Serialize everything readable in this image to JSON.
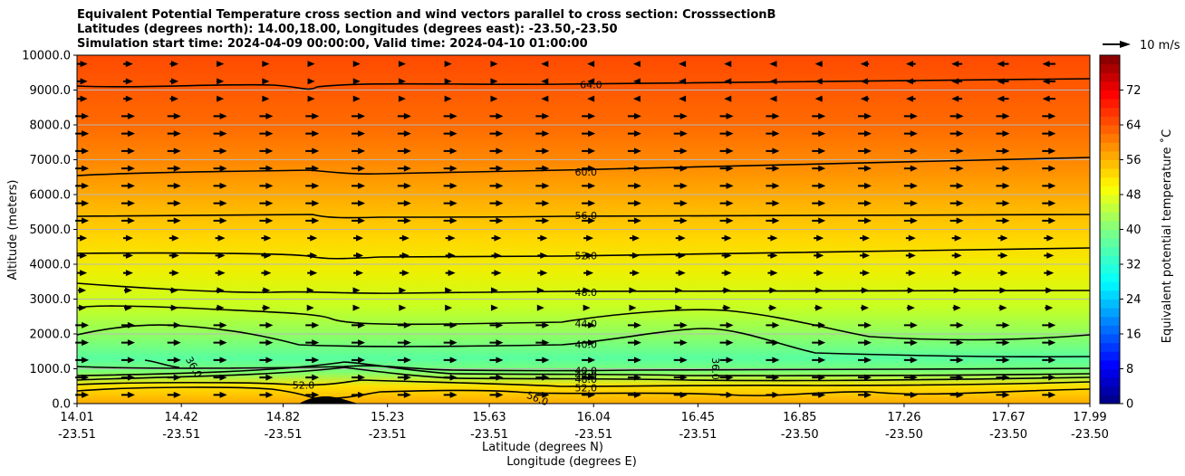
{
  "chart_data": {
    "type": "heatmap",
    "title_lines": [
      "Equivalent Potential Temperature cross section and wind vectors parallel to cross section: CrosssectionB",
      "Latitudes (degrees north): 14.00,18.00, Longitudes (degrees east): -23.50,-23.50",
      "Simulation start time: 2024-04-09 00:00:00, Valid time: 2024-04-10 01:00:00"
    ],
    "ylabel": "Altitude (meters)",
    "xlabel_1": "Latitude (degrees N)",
    "xlabel_2": "Longitude (degrees E)",
    "ylim": [
      0,
      10000
    ],
    "y_ticks": [
      "10000.0",
      "9000.0",
      "8000.0",
      "7000.0",
      "6000.0",
      "5000.0",
      "4000.0",
      "3000.0",
      "2000.0",
      "1000.0",
      "0.0"
    ],
    "y_tick_values": [
      10000,
      9000,
      8000,
      7000,
      6000,
      5000,
      4000,
      3000,
      2000,
      1000,
      0
    ],
    "xlim": [
      14.01,
      17.99
    ],
    "x_ticks": [
      {
        "lat": "14.01",
        "lon": "-23.51",
        "v": 14.01
      },
      {
        "lat": "14.42",
        "lon": "-23.51",
        "v": 14.42
      },
      {
        "lat": "14.82",
        "lon": "-23.51",
        "v": 14.82
      },
      {
        "lat": "15.23",
        "lon": "-23.51",
        "v": 15.23
      },
      {
        "lat": "15.63",
        "lon": "-23.51",
        "v": 15.63
      },
      {
        "lat": "16.04",
        "lon": "-23.51",
        "v": 16.04
      },
      {
        "lat": "16.45",
        "lon": "-23.51",
        "v": 16.45
      },
      {
        "lat": "16.85",
        "lon": "-23.50",
        "v": 16.85
      },
      {
        "lat": "17.26",
        "lon": "-23.50",
        "v": 17.26
      },
      {
        "lat": "17.67",
        "lon": "-23.50",
        "v": 17.67
      },
      {
        "lat": "17.99",
        "lon": "-23.50",
        "v": 17.99
      }
    ],
    "colorbar": {
      "label": "Equivalent potential temperature ˚C",
      "min": 0,
      "max": 80,
      "ticks": [
        "0",
        "8",
        "16",
        "24",
        "32",
        "40",
        "48",
        "56",
        "64",
        "72"
      ],
      "tick_values": [
        0,
        8,
        16,
        24,
        32,
        40,
        48,
        56,
        64,
        72
      ]
    },
    "quiver_key": "10 m/s",
    "contour_labels": [
      {
        "text": "64.0",
        "x": 16.03,
        "y": 9150
      },
      {
        "text": "60.0",
        "x": 16.01,
        "y": 6650
      },
      {
        "text": "56.0",
        "x": 16.01,
        "y": 5400
      },
      {
        "text": "52.0",
        "x": 16.01,
        "y": 4250
      },
      {
        "text": "48.0",
        "x": 16.01,
        "y": 3200
      },
      {
        "text": "44.0",
        "x": 16.01,
        "y": 2300
      },
      {
        "text": "40.0",
        "x": 16.01,
        "y": 1700
      },
      {
        "text": "40.0",
        "x": 16.01,
        "y": 950
      },
      {
        "text": "44.0",
        "x": 16.01,
        "y": 820
      },
      {
        "text": "48.0",
        "x": 16.01,
        "y": 700
      },
      {
        "text": "52.0",
        "x": 16.01,
        "y": 460
      },
      {
        "text": "52.0",
        "x": 14.9,
        "y": 530
      },
      {
        "text": "56.0",
        "x": 15.82,
        "y": 150
      },
      {
        "text": "36.0",
        "x": 14.47,
        "y": 1050
      },
      {
        "text": "36.0",
        "x": 16.52,
        "y": 1000
      }
    ]
  }
}
